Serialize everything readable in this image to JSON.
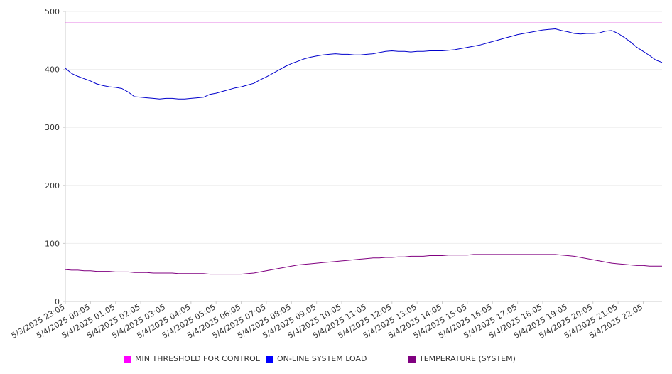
{
  "chart_data": {
    "type": "line",
    "title": "",
    "xlabel": "",
    "ylabel": "",
    "ylim": [
      0,
      500
    ],
    "y_ticks": [
      "0",
      "100",
      "200",
      "300",
      "400",
      "500"
    ],
    "x_ticks": [
      "5/3/2025 23:05",
      "5/4/2025 00:05",
      "5/4/2025 01:05",
      "5/4/2025 02:05",
      "5/4/2025 03:05",
      "5/4/2025 04:05",
      "5/4/2025 05:05",
      "5/4/2025 06:05",
      "5/4/2025 07:05",
      "5/4/2025 08:05",
      "5/4/2025 09:05",
      "5/4/2025 10:05",
      "5/4/2025 11:05",
      "5/4/2025 12:05",
      "5/4/2025 13:05",
      "5/4/2025 14:05",
      "5/4/2025 15:05",
      "5/4/2025 16:05",
      "5/4/2025 17:05",
      "5/4/2025 18:05",
      "5/4/2025 19:05",
      "5/4/2025 20:05",
      "5/4/2025 21:05",
      "5/4/2025 22:05"
    ],
    "x_start": "5/3/2025 23:05",
    "x_end": "5/4/2025 22:50",
    "x_step_minutes": 15,
    "grid": true,
    "legend_position": "bottom",
    "series": [
      {
        "name": "MIN THRESHOLD FOR CONTROL",
        "color": "#cc00cc",
        "values": [
          480,
          480,
          480,
          480,
          480,
          480,
          480,
          480,
          480,
          480,
          480,
          480,
          480,
          480,
          480,
          480,
          480,
          480,
          480,
          480,
          480,
          480,
          480,
          480,
          480,
          480,
          480,
          480,
          480,
          480,
          480,
          480,
          480,
          480,
          480,
          480,
          480,
          480,
          480,
          480,
          480,
          480,
          480,
          480,
          480,
          480,
          480,
          480,
          480,
          480,
          480,
          480,
          480,
          480,
          480,
          480,
          480,
          480,
          480,
          480,
          480,
          480,
          480,
          480,
          480,
          480,
          480,
          480,
          480,
          480,
          480,
          480,
          480,
          480,
          480,
          480,
          480,
          480,
          480,
          480,
          480,
          480,
          480,
          480,
          480,
          480,
          480,
          480,
          480,
          480,
          480,
          480,
          480,
          480,
          480,
          480
        ]
      },
      {
        "name": "ON-LINE SYSTEM LOAD",
        "color": "#0000cc",
        "values": [
          402,
          393,
          388,
          384,
          380,
          375,
          372,
          370,
          369,
          367,
          361,
          353,
          352,
          351,
          350,
          349,
          350,
          350,
          349,
          349,
          350,
          351,
          352,
          357,
          359,
          362,
          365,
          368,
          370,
          373,
          376,
          382,
          387,
          393,
          399,
          405,
          410,
          414,
          418,
          421,
          423,
          425,
          426,
          427,
          426,
          426,
          425,
          425,
          426,
          427,
          429,
          431,
          432,
          431,
          431,
          430,
          431,
          431,
          432,
          432,
          432,
          433,
          434,
          436,
          438,
          440,
          442,
          445,
          448,
          451,
          454,
          457,
          460,
          462,
          464,
          466,
          468,
          469,
          470,
          467,
          465,
          462,
          461,
          462,
          462,
          463,
          466,
          467,
          462,
          455,
          447,
          438,
          431,
          424,
          416,
          412
        ]
      },
      {
        "name": "TEMPERATURE (SYSTEM)",
        "color": "#800080",
        "values": [
          55,
          54,
          54,
          53,
          53,
          52,
          52,
          52,
          51,
          51,
          51,
          50,
          50,
          50,
          49,
          49,
          49,
          49,
          48,
          48,
          48,
          48,
          48,
          47,
          47,
          47,
          47,
          47,
          47,
          48,
          49,
          51,
          53,
          55,
          57,
          59,
          61,
          63,
          64,
          65,
          66,
          67,
          68,
          69,
          70,
          71,
          72,
          73,
          74,
          75,
          75,
          76,
          76,
          77,
          77,
          78,
          78,
          78,
          79,
          79,
          79,
          80,
          80,
          80,
          80,
          81,
          81,
          81,
          81,
          81,
          81,
          81,
          81,
          81,
          81,
          81,
          81,
          81,
          81,
          80,
          79,
          78,
          76,
          74,
          72,
          70,
          68,
          66,
          65,
          64,
          63,
          62,
          62,
          61,
          61,
          61
        ]
      }
    ]
  }
}
